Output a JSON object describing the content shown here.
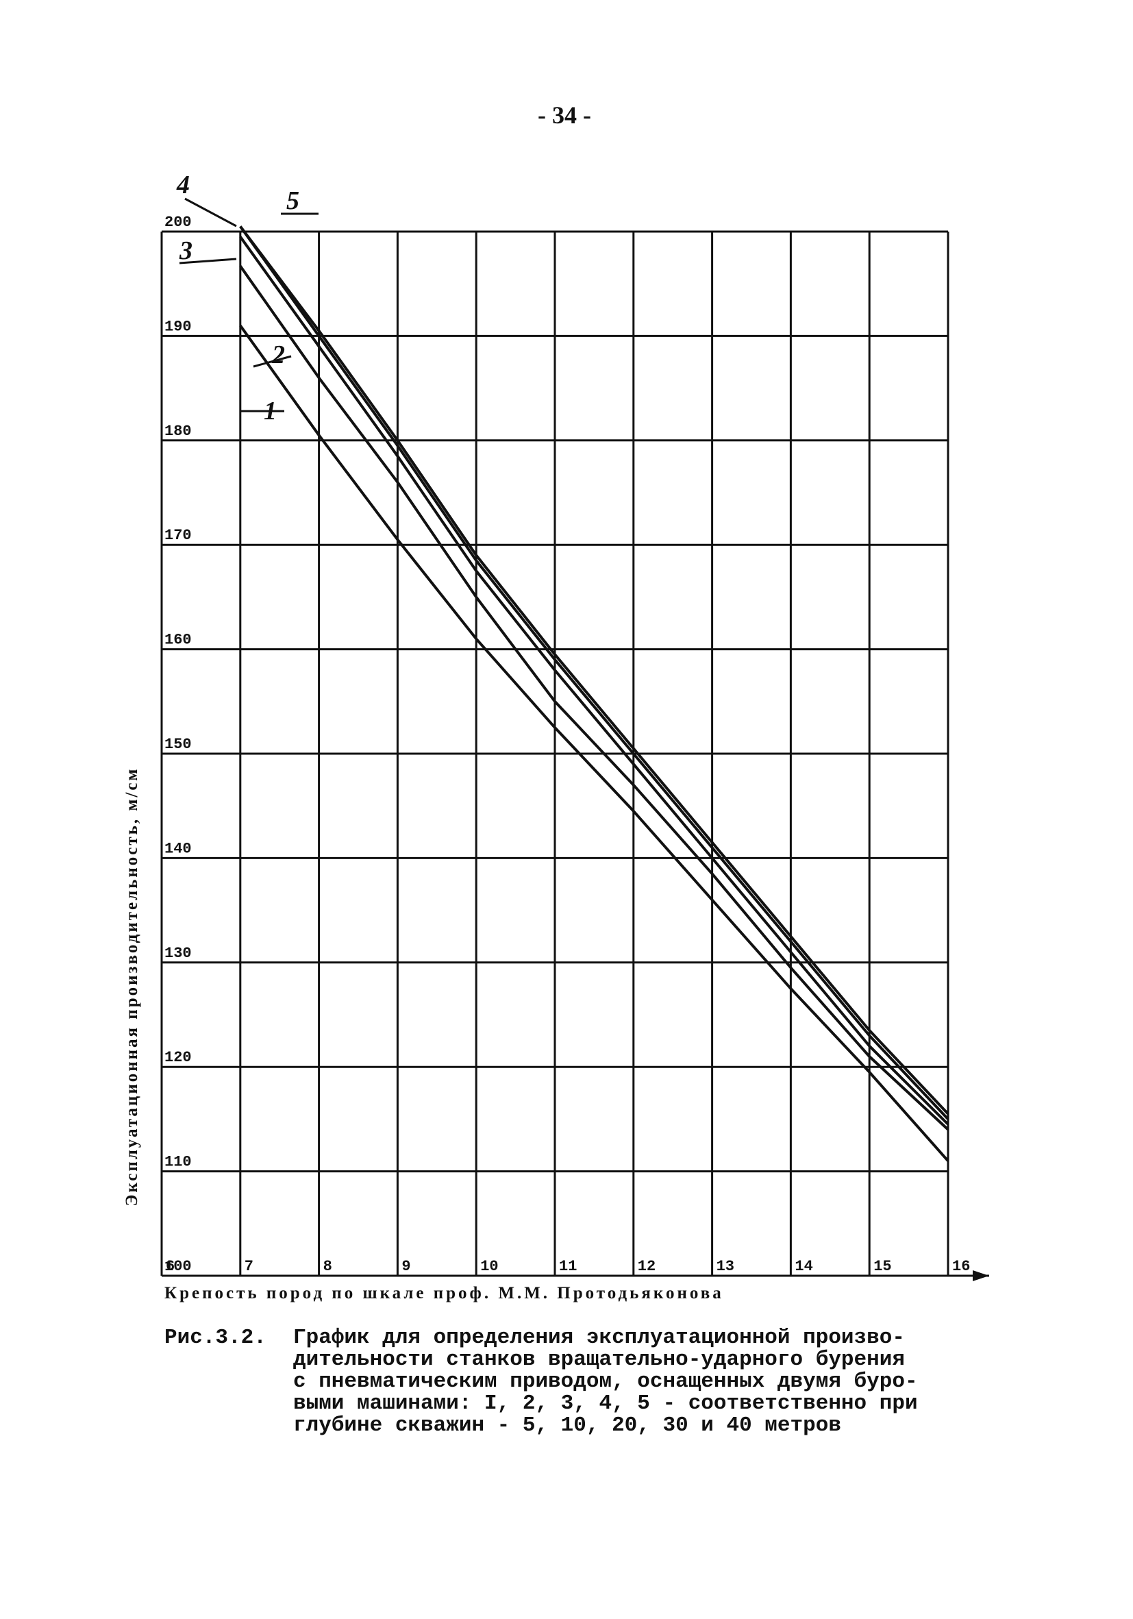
{
  "page_number": "- 34 -",
  "chart_data": {
    "type": "line",
    "xlabel": "Крепость пород по шкале проф. М.М. Протодьяконова",
    "ylabel": "Эксплуатационная производительность, м/см",
    "x": [
      7,
      8,
      9,
      10,
      11,
      12,
      13,
      14,
      15,
      16
    ],
    "xlim": [
      6,
      16
    ],
    "xticks": [
      6,
      7,
      8,
      9,
      10,
      11,
      12,
      13,
      14,
      15,
      16
    ],
    "ylim": [
      100,
      200
    ],
    "yticks": [
      100,
      110,
      120,
      130,
      140,
      150,
      160,
      170,
      180,
      190,
      200
    ],
    "grid": true,
    "series": [
      {
        "name": "1",
        "color": "#111111",
        "values": [
          191,
          180.5,
          170.5,
          161,
          152.5,
          144.5,
          136,
          127.5,
          119.5,
          111
        ]
      },
      {
        "name": "2",
        "color": "#111111",
        "values": [
          196.7,
          186,
          176,
          165,
          155,
          147,
          138.5,
          129.5,
          121,
          114
        ]
      },
      {
        "name": "3",
        "color": "#111111",
        "values": [
          199.5,
          189,
          178.5,
          167.5,
          158,
          149,
          140,
          131,
          122,
          114.5
        ]
      },
      {
        "name": "4",
        "color": "#111111",
        "values": [
          200.5,
          190,
          179.5,
          168.5,
          159,
          150,
          141,
          132,
          123,
          115
        ]
      },
      {
        "name": "5",
        "color": "#111111",
        "values": [
          200.5,
          190.5,
          180,
          169,
          159.5,
          150.5,
          141.5,
          132.5,
          123.5,
          115.5
        ]
      }
    ]
  },
  "caption": {
    "label": "Рис.3.2.",
    "lines": [
      "График для определения эксплуатационной произво-",
      "дительности станков вращательно-ударного бурения",
      "с пневматическим приводом, оснащенных двумя буро-",
      "выми машинами: I, 2, 3, 4, 5 - соответственно при",
      "глубине скважин - 5, 10, 20, 30 и 40 метров"
    ]
  }
}
